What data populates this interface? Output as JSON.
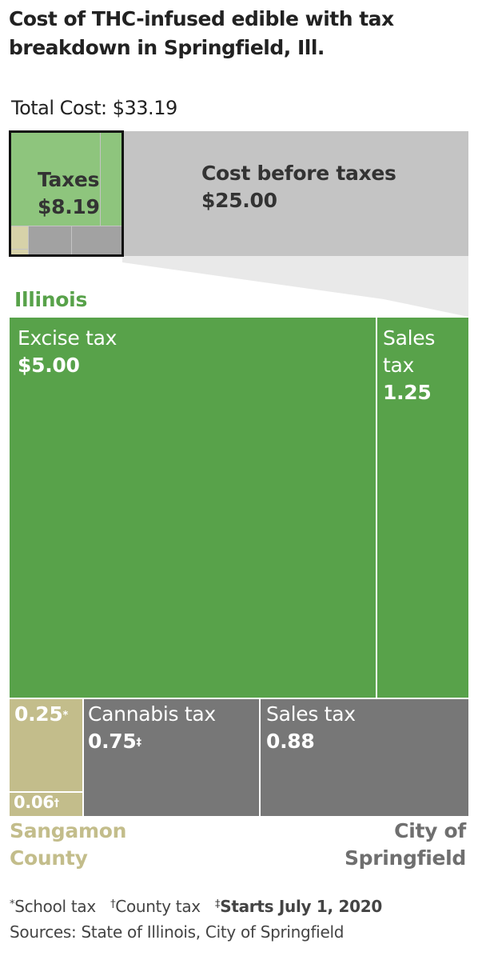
{
  "title_line1": "Cost of THC-infused edible with tax",
  "title_line2": "breakdown in Springfield, Ill.",
  "total_cost": "Total Cost: $33.19",
  "overview": {
    "taxes_label": "Taxes",
    "taxes_value": "$8.19",
    "pre_tax_label": "Cost before taxes",
    "pre_tax_value": "$25.00"
  },
  "groups": {
    "illinois": "Illinois",
    "sangamon_line1": "Sangamon",
    "sangamon_line2": "County",
    "city_line1": "City of",
    "city_line2": "Springfield"
  },
  "labels": {
    "il_excise_name": "Excise tax",
    "il_excise_value": "$5.00",
    "il_sales_name_1": "Sales",
    "il_sales_name_2": "tax",
    "il_sales_value": "1.25",
    "school_value": "0.25",
    "school_mark": "*",
    "county_value": "0.06",
    "county_mark": "†",
    "cannabis_name": "Cannabis tax",
    "cannabis_value": "0.75",
    "cannabis_mark": "‡",
    "city_sales_name": "Sales tax",
    "city_sales_value": "0.88"
  },
  "footnotes": {
    "school_mark": "*",
    "school": "School tax",
    "county_mark": "†",
    "county": "County tax",
    "starts_mark": "‡",
    "starts": "Starts July 1, 2020",
    "sources": "Sources: State of Illinois, City of Springfield"
  },
  "colors": {
    "illinois": "#58a24a",
    "illinois_light": "#8ec57d",
    "county": "#c3bd8b",
    "city": "#777777",
    "city_light": "#a2a2a2",
    "pre_tax": "#c4c4c4"
  },
  "chart_data": {
    "type": "treemap",
    "title": "Cost of THC-infused edible with tax breakdown in Springfield, Ill.",
    "total": 33.19,
    "overview": [
      {
        "name": "Cost before taxes",
        "value": 25.0
      },
      {
        "name": "Taxes",
        "value": 8.19
      }
    ],
    "taxes": [
      {
        "group": "Illinois",
        "name": "Excise tax",
        "value": 5.0
      },
      {
        "group": "Illinois",
        "name": "Sales tax",
        "value": 1.25
      },
      {
        "group": "Sangamon County",
        "name": "School tax",
        "value": 0.25
      },
      {
        "group": "Sangamon County",
        "name": "County tax",
        "value": 0.06
      },
      {
        "group": "City of Springfield",
        "name": "Cannabis tax",
        "value": 0.75
      },
      {
        "group": "City of Springfield",
        "name": "Sales tax",
        "value": 0.88
      }
    ]
  }
}
